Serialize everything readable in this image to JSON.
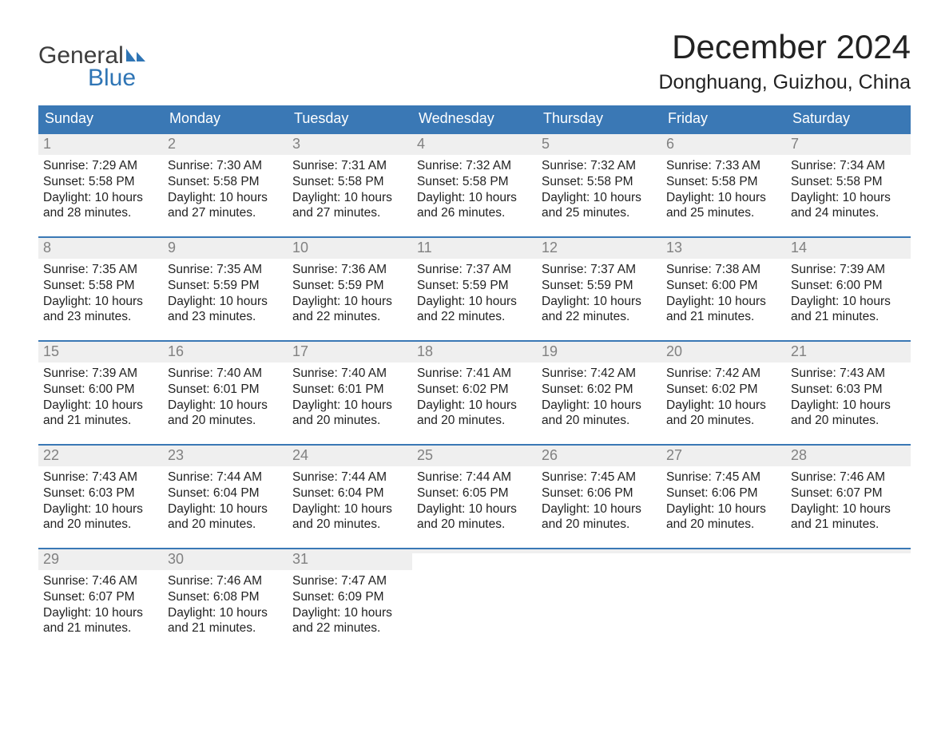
{
  "brand": {
    "word1": "General",
    "word2": "Blue",
    "text_color": "#3d3d3d",
    "accent_color": "#2f75b5"
  },
  "title": {
    "month": "December 2024",
    "location": "Donghuang, Guizhou, China",
    "month_fontsize": 42,
    "loc_fontsize": 25
  },
  "calendar": {
    "header_bg": "#3a78b5",
    "header_fg": "#ffffff",
    "daynum_bg": "#efefef",
    "daynum_fg": "#818181",
    "week_border": "#3a78b5",
    "body_fontsize": 15.5,
    "dayhead_fontsize": 18,
    "daynum_fontsize": 18,
    "days": [
      "Sunday",
      "Monday",
      "Tuesday",
      "Wednesday",
      "Thursday",
      "Friday",
      "Saturday"
    ],
    "weeks": [
      [
        {
          "n": "1",
          "sunrise": "7:29 AM",
          "sunset": "5:58 PM",
          "dl1": "Daylight: 10 hours",
          "dl2": "and 28 minutes."
        },
        {
          "n": "2",
          "sunrise": "7:30 AM",
          "sunset": "5:58 PM",
          "dl1": "Daylight: 10 hours",
          "dl2": "and 27 minutes."
        },
        {
          "n": "3",
          "sunrise": "7:31 AM",
          "sunset": "5:58 PM",
          "dl1": "Daylight: 10 hours",
          "dl2": "and 27 minutes."
        },
        {
          "n": "4",
          "sunrise": "7:32 AM",
          "sunset": "5:58 PM",
          "dl1": "Daylight: 10 hours",
          "dl2": "and 26 minutes."
        },
        {
          "n": "5",
          "sunrise": "7:32 AM",
          "sunset": "5:58 PM",
          "dl1": "Daylight: 10 hours",
          "dl2": "and 25 minutes."
        },
        {
          "n": "6",
          "sunrise": "7:33 AM",
          "sunset": "5:58 PM",
          "dl1": "Daylight: 10 hours",
          "dl2": "and 25 minutes."
        },
        {
          "n": "7",
          "sunrise": "7:34 AM",
          "sunset": "5:58 PM",
          "dl1": "Daylight: 10 hours",
          "dl2": "and 24 minutes."
        }
      ],
      [
        {
          "n": "8",
          "sunrise": "7:35 AM",
          "sunset": "5:58 PM",
          "dl1": "Daylight: 10 hours",
          "dl2": "and 23 minutes."
        },
        {
          "n": "9",
          "sunrise": "7:35 AM",
          "sunset": "5:59 PM",
          "dl1": "Daylight: 10 hours",
          "dl2": "and 23 minutes."
        },
        {
          "n": "10",
          "sunrise": "7:36 AM",
          "sunset": "5:59 PM",
          "dl1": "Daylight: 10 hours",
          "dl2": "and 22 minutes."
        },
        {
          "n": "11",
          "sunrise": "7:37 AM",
          "sunset": "5:59 PM",
          "dl1": "Daylight: 10 hours",
          "dl2": "and 22 minutes."
        },
        {
          "n": "12",
          "sunrise": "7:37 AM",
          "sunset": "5:59 PM",
          "dl1": "Daylight: 10 hours",
          "dl2": "and 22 minutes."
        },
        {
          "n": "13",
          "sunrise": "7:38 AM",
          "sunset": "6:00 PM",
          "dl1": "Daylight: 10 hours",
          "dl2": "and 21 minutes."
        },
        {
          "n": "14",
          "sunrise": "7:39 AM",
          "sunset": "6:00 PM",
          "dl1": "Daylight: 10 hours",
          "dl2": "and 21 minutes."
        }
      ],
      [
        {
          "n": "15",
          "sunrise": "7:39 AM",
          "sunset": "6:00 PM",
          "dl1": "Daylight: 10 hours",
          "dl2": "and 21 minutes."
        },
        {
          "n": "16",
          "sunrise": "7:40 AM",
          "sunset": "6:01 PM",
          "dl1": "Daylight: 10 hours",
          "dl2": "and 20 minutes."
        },
        {
          "n": "17",
          "sunrise": "7:40 AM",
          "sunset": "6:01 PM",
          "dl1": "Daylight: 10 hours",
          "dl2": "and 20 minutes."
        },
        {
          "n": "18",
          "sunrise": "7:41 AM",
          "sunset": "6:02 PM",
          "dl1": "Daylight: 10 hours",
          "dl2": "and 20 minutes."
        },
        {
          "n": "19",
          "sunrise": "7:42 AM",
          "sunset": "6:02 PM",
          "dl1": "Daylight: 10 hours",
          "dl2": "and 20 minutes."
        },
        {
          "n": "20",
          "sunrise": "7:42 AM",
          "sunset": "6:02 PM",
          "dl1": "Daylight: 10 hours",
          "dl2": "and 20 minutes."
        },
        {
          "n": "21",
          "sunrise": "7:43 AM",
          "sunset": "6:03 PM",
          "dl1": "Daylight: 10 hours",
          "dl2": "and 20 minutes."
        }
      ],
      [
        {
          "n": "22",
          "sunrise": "7:43 AM",
          "sunset": "6:03 PM",
          "dl1": "Daylight: 10 hours",
          "dl2": "and 20 minutes."
        },
        {
          "n": "23",
          "sunrise": "7:44 AM",
          "sunset": "6:04 PM",
          "dl1": "Daylight: 10 hours",
          "dl2": "and 20 minutes."
        },
        {
          "n": "24",
          "sunrise": "7:44 AM",
          "sunset": "6:04 PM",
          "dl1": "Daylight: 10 hours",
          "dl2": "and 20 minutes."
        },
        {
          "n": "25",
          "sunrise": "7:44 AM",
          "sunset": "6:05 PM",
          "dl1": "Daylight: 10 hours",
          "dl2": "and 20 minutes."
        },
        {
          "n": "26",
          "sunrise": "7:45 AM",
          "sunset": "6:06 PM",
          "dl1": "Daylight: 10 hours",
          "dl2": "and 20 minutes."
        },
        {
          "n": "27",
          "sunrise": "7:45 AM",
          "sunset": "6:06 PM",
          "dl1": "Daylight: 10 hours",
          "dl2": "and 20 minutes."
        },
        {
          "n": "28",
          "sunrise": "7:46 AM",
          "sunset": "6:07 PM",
          "dl1": "Daylight: 10 hours",
          "dl2": "and 21 minutes."
        }
      ],
      [
        {
          "n": "29",
          "sunrise": "7:46 AM",
          "sunset": "6:07 PM",
          "dl1": "Daylight: 10 hours",
          "dl2": "and 21 minutes."
        },
        {
          "n": "30",
          "sunrise": "7:46 AM",
          "sunset": "6:08 PM",
          "dl1": "Daylight: 10 hours",
          "dl2": "and 21 minutes."
        },
        {
          "n": "31",
          "sunrise": "7:47 AM",
          "sunset": "6:09 PM",
          "dl1": "Daylight: 10 hours",
          "dl2": "and 22 minutes."
        },
        {
          "n": "",
          "sunrise": "",
          "sunset": "",
          "dl1": "",
          "dl2": ""
        },
        {
          "n": "",
          "sunrise": "",
          "sunset": "",
          "dl1": "",
          "dl2": ""
        },
        {
          "n": "",
          "sunrise": "",
          "sunset": "",
          "dl1": "",
          "dl2": ""
        },
        {
          "n": "",
          "sunrise": "",
          "sunset": "",
          "dl1": "",
          "dl2": ""
        }
      ]
    ],
    "labels": {
      "sunrise_prefix": "Sunrise: ",
      "sunset_prefix": "Sunset: "
    }
  }
}
